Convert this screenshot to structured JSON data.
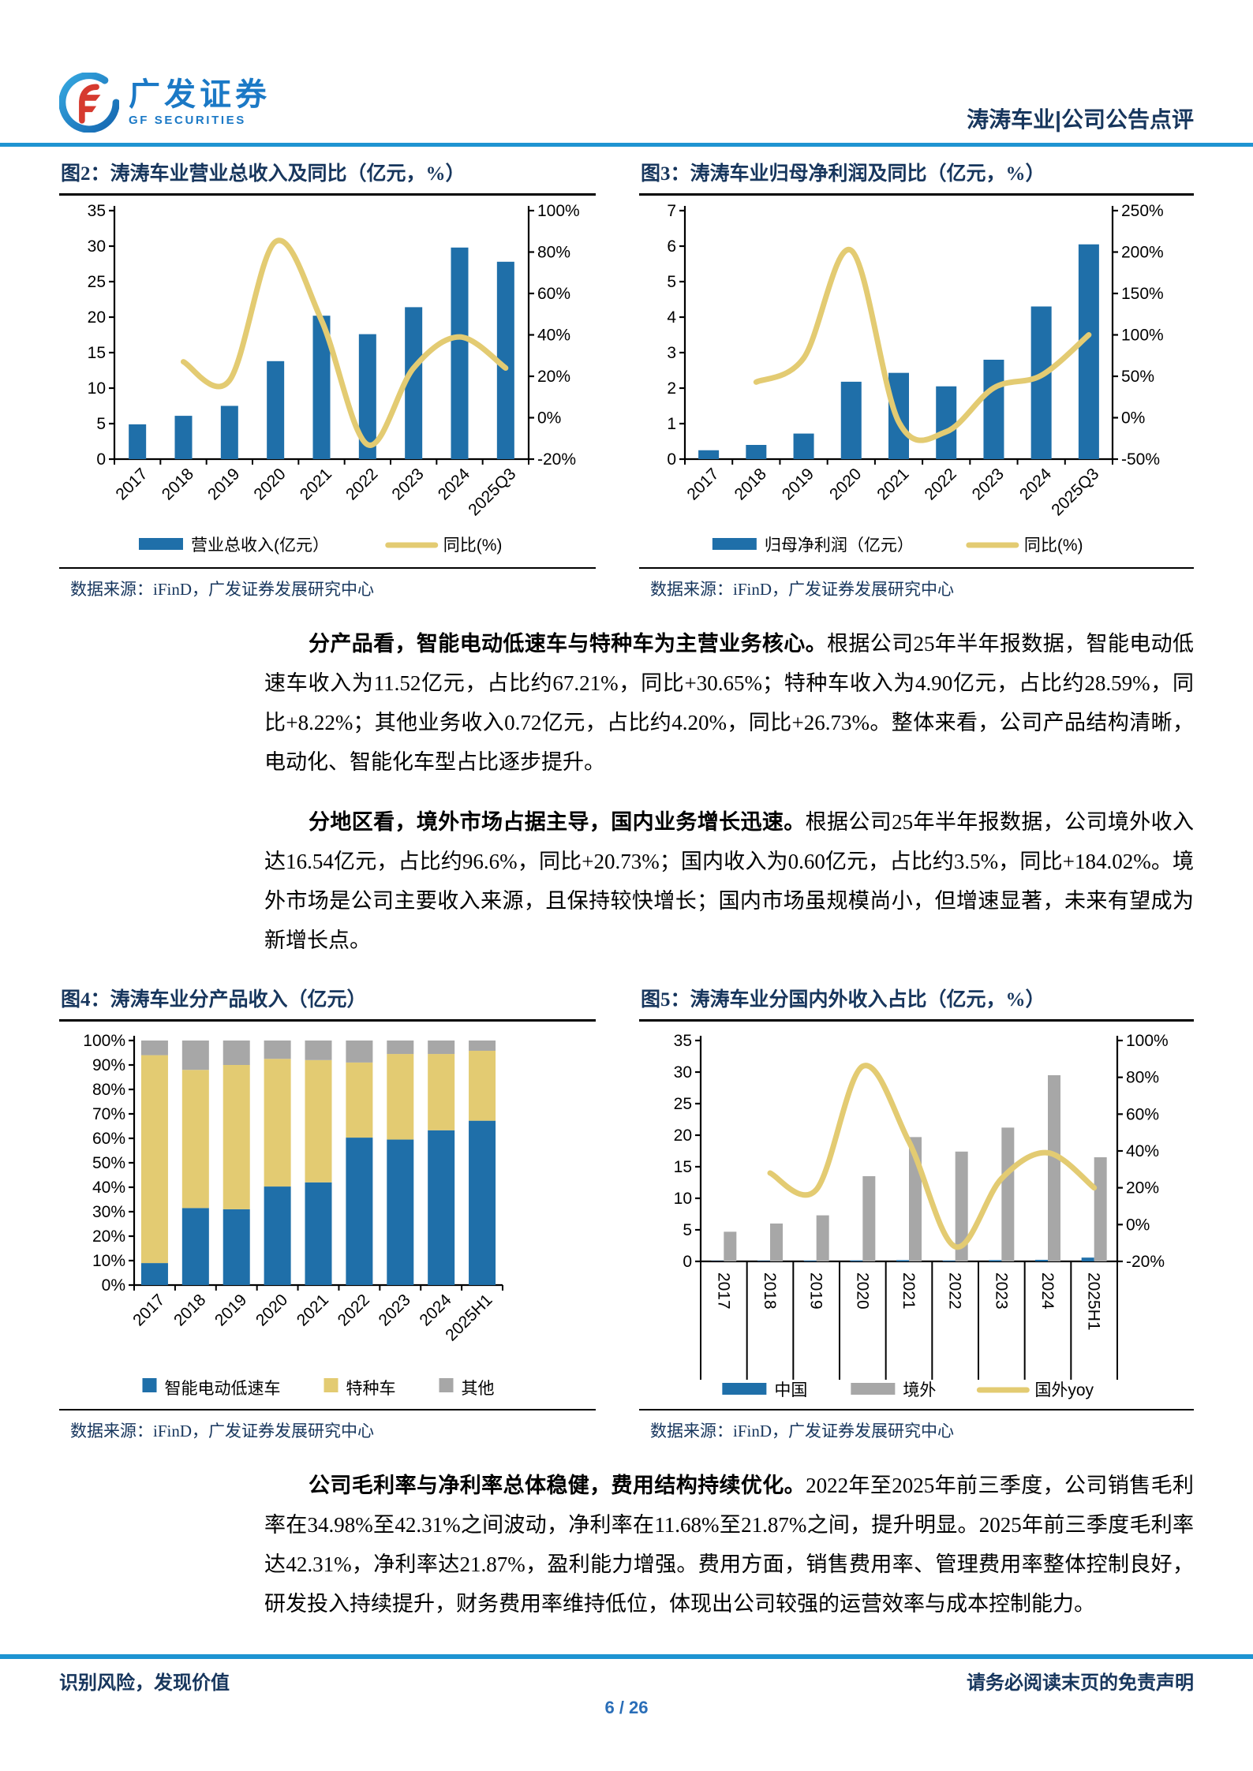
{
  "header": {
    "brand_cn": "广发证券",
    "brand_en": "GF SECURITIES",
    "doc_title": "涛涛车业|公司公告点评"
  },
  "colors": {
    "accent_blue": "#1E94D2",
    "navy": "#17365D",
    "bar_blue": "#1F6FA9",
    "line_yellow": "#E3CB72",
    "gray": "#A7A7A7"
  },
  "figures": {
    "fig2": {
      "title": "图2：涛涛车业营业总收入及同比（亿元，%）",
      "source": "数据来源：iFinD，广发证券发展研究中心"
    },
    "fig3": {
      "title": "图3：涛涛车业归母净利润及同比（亿元，%）",
      "source": "数据来源：iFinD，广发证券发展研究中心"
    },
    "fig4": {
      "title": "图4：涛涛车业分产品收入（亿元）",
      "source": "数据来源：iFinD，广发证券发展研究中心"
    },
    "fig5": {
      "title": "图5：涛涛车业分国内外收入占比（亿元，%）",
      "source": "数据来源：iFinD，广发证券发展研究中心"
    }
  },
  "paragraphs": {
    "p1": {
      "bold": "分产品看，智能电动低速车与特种车为主营业务核心。",
      "rest": "根据公司25年半年报数据，智能电动低速车收入为11.52亿元，占比约67.21%，同比+30.65%；特种车收入为4.90亿元，占比约28.59%，同比+8.22%；其他业务收入0.72亿元，占比约4.20%，同比+26.73%。整体来看，公司产品结构清晰，电动化、智能化车型占比逐步提升。"
    },
    "p2": {
      "bold": "分地区看，境外市场占据主导，国内业务增长迅速。",
      "rest": "根据公司25年半年报数据，公司境外收入达16.54亿元，占比约96.6%，同比+20.73%；国内收入为0.60亿元，占比约3.5%，同比+184.02%。境外市场是公司主要收入来源，且保持较快增长；国内市场虽规模尚小，但增速显著，未来有望成为新增长点。"
    },
    "p3": {
      "bold": "公司毛利率与净利率总体稳健，费用结构持续优化。",
      "rest": "2022年至2025年前三季度，公司销售毛利率在34.98%至42.31%之间波动，净利率在11.68%至21.87%之间，提升明显。2025年前三季度毛利率达42.31%，净利率达21.87%，盈利能力增强。费用方面，销售费用率、管理费用率整体控制良好，研发投入持续提升，财务费用率维持低位，体现出公司较强的运营效率与成本控制能力。"
    }
  },
  "footer": {
    "left": "识别风险，发现价值",
    "right": "请务必阅读末页的免责声明",
    "page": "6 / 26"
  },
  "chart_data": [
    {
      "id": "fig2",
      "type": "combo_bar_line",
      "title": "涛涛车业营业总收入及同比（亿元，%）",
      "categories": [
        "2017",
        "2018",
        "2019",
        "2020",
        "2021",
        "2022",
        "2023",
        "2024",
        "2025Q3"
      ],
      "series": [
        {
          "name": "营业总收入(亿元）",
          "type": "bar",
          "color": "#1F6FA9",
          "values": [
            4.9,
            6.1,
            7.5,
            13.8,
            20.2,
            17.6,
            21.4,
            29.8,
            27.8
          ]
        },
        {
          "name": "同比(%)",
          "type": "line",
          "axis": "right",
          "color": "#E3CB72",
          "values": [
            null,
            27,
            18,
            85,
            47,
            -13,
            24,
            39,
            24
          ]
        }
      ],
      "left_axis": {
        "min": 0,
        "max": 35,
        "step": 5,
        "suffix": ""
      },
      "right_axis": {
        "min": -20,
        "max": 100,
        "step": 20,
        "suffix": "%"
      },
      "grid": false,
      "legend_position": "bottom"
    },
    {
      "id": "fig3",
      "type": "combo_bar_line",
      "title": "涛涛车业归母净利润及同比（亿元，%）",
      "categories": [
        "2017",
        "2018",
        "2019",
        "2020",
        "2021",
        "2022",
        "2023",
        "2024",
        "2025Q3"
      ],
      "series": [
        {
          "name": "归母净利润（亿元）",
          "type": "bar",
          "color": "#1F6FA9",
          "values": [
            0.25,
            0.4,
            0.72,
            2.18,
            2.43,
            2.05,
            2.8,
            4.3,
            6.05
          ]
        },
        {
          "name": "同比(%)",
          "type": "line",
          "axis": "right",
          "color": "#E3CB72",
          "values": [
            null,
            43,
            72,
            202,
            -5,
            -17,
            36,
            51,
            100
          ]
        }
      ],
      "left_axis": {
        "min": 0,
        "max": 7,
        "step": 1,
        "suffix": ""
      },
      "right_axis": {
        "min": -50,
        "max": 250,
        "step": 50,
        "suffix": "%"
      },
      "grid": false,
      "legend_position": "bottom"
    },
    {
      "id": "fig4",
      "type": "stacked_bar_100",
      "title": "涛涛车业分产品收入（亿元）",
      "categories": [
        "2017",
        "2018",
        "2019",
        "2020",
        "2021",
        "2022",
        "2023",
        "2024",
        "2025H1"
      ],
      "series": [
        {
          "name": "智能电动低速车",
          "color": "#1F6FA9",
          "values": [
            9,
            31.5,
            31,
            40.3,
            42,
            60.3,
            59.5,
            63.3,
            67.21
          ]
        },
        {
          "name": "特种车",
          "color": "#E3CB72",
          "values": [
            85,
            56.5,
            59,
            52.2,
            50,
            30.7,
            35,
            31.2,
            28.59
          ]
        },
        {
          "name": "其他",
          "color": "#A7A7A7",
          "values": [
            6,
            12,
            10,
            7.5,
            8,
            9,
            5.5,
            5.5,
            4.2
          ]
        }
      ],
      "left_axis": {
        "min": 0,
        "max": 100,
        "step": 10,
        "suffix": "%"
      },
      "grid": false,
      "legend_position": "bottom"
    },
    {
      "id": "fig5",
      "type": "combo_bar_line",
      "title": "涛涛车业分国内外收入占比（亿元，%）",
      "categories": [
        "2017",
        "2018",
        "2019",
        "2020",
        "2021",
        "2022",
        "2023",
        "2024",
        "2025H1"
      ],
      "series": [
        {
          "name": "中国",
          "type": "bar",
          "color": "#1F6FA9",
          "values": [
            0.05,
            0.08,
            0.12,
            0.15,
            0.2,
            0.12,
            0.2,
            0.25,
            0.6
          ]
        },
        {
          "name": "境外",
          "type": "bar",
          "color": "#A7A7A7",
          "values": [
            4.7,
            6.0,
            7.3,
            13.5,
            19.7,
            17.4,
            21.2,
            29.5,
            16.5
          ]
        },
        {
          "name": "国外yoy",
          "type": "line",
          "axis": "right",
          "color": "#E3CB72",
          "values": [
            null,
            28,
            19,
            86,
            45,
            -12,
            25,
            39,
            20
          ]
        }
      ],
      "left_axis": {
        "min": 0,
        "max": 35,
        "step": 5,
        "suffix": ""
      },
      "right_axis": {
        "min": -20,
        "max": 100,
        "step": 20,
        "suffix": "%"
      },
      "grid": false,
      "legend_position": "bottom"
    }
  ]
}
